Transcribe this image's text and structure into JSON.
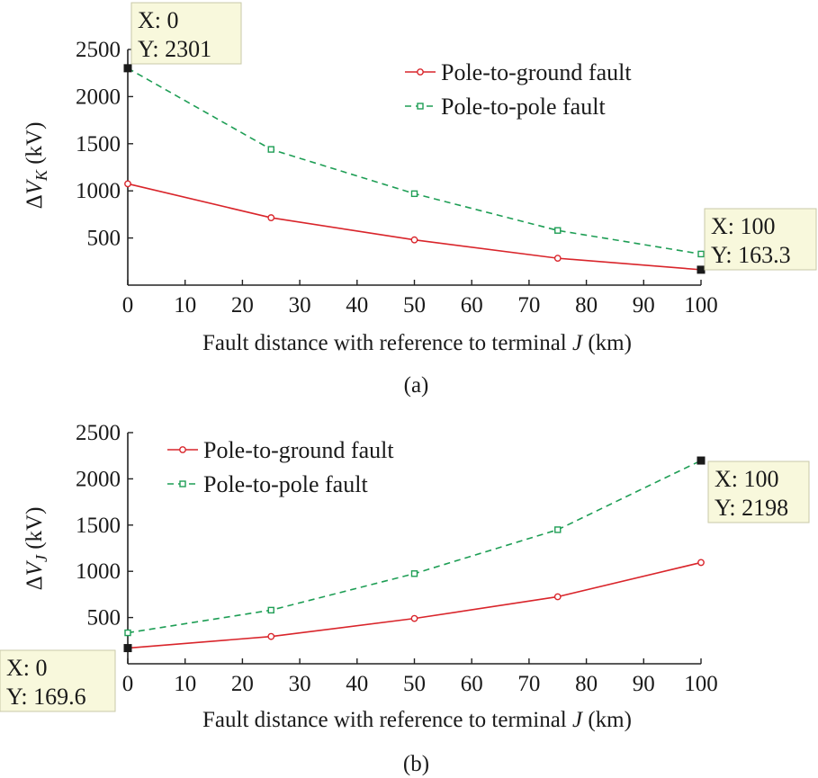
{
  "chart_data": [
    {
      "type": "line",
      "caption": "(a)",
      "xlabel": "Fault distance with reference to terminal J (km)",
      "ylabel": "ΔV_K (kV)",
      "xlim": [
        0,
        100
      ],
      "ylim": [
        0,
        2500
      ],
      "xticks": [
        0,
        10,
        20,
        30,
        40,
        50,
        60,
        70,
        80,
        90,
        100
      ],
      "yticks": [
        500,
        1000,
        1500,
        2000,
        2500
      ],
      "grid": false,
      "legend_position": "top-right",
      "series": [
        {
          "name": "Pole-to-ground fault",
          "color": "#d9252b",
          "style": "solid",
          "marker": "circle",
          "x": [
            0,
            25,
            50,
            75,
            100
          ],
          "y": [
            1075,
            715,
            480,
            285,
            163.3
          ]
        },
        {
          "name": "Pole-to-pole fault",
          "color": "#1e9e55",
          "style": "dashed",
          "marker": "square",
          "x": [
            0,
            25,
            50,
            75,
            100
          ],
          "y": [
            2301,
            1440,
            970,
            580,
            330
          ]
        }
      ],
      "datatips": [
        {
          "x": 0,
          "y": 2301,
          "line1": "X: 0",
          "line2": "Y: 2301"
        },
        {
          "x": 100,
          "y": 163.3,
          "line1": "X: 100",
          "line2": "Y: 163.3"
        }
      ]
    },
    {
      "type": "line",
      "caption": "(b)",
      "xlabel": "Fault distance with reference to terminal J (km)",
      "ylabel": "ΔV_J (kV)",
      "xlim": [
        0,
        100
      ],
      "ylim": [
        0,
        2500
      ],
      "xticks": [
        0,
        10,
        20,
        30,
        40,
        50,
        60,
        70,
        80,
        90,
        100
      ],
      "yticks": [
        500,
        1000,
        1500,
        2000,
        2500
      ],
      "grid": false,
      "legend_position": "top-left",
      "series": [
        {
          "name": "Pole-to-ground fault",
          "color": "#d9252b",
          "style": "solid",
          "marker": "circle",
          "x": [
            0,
            25,
            50,
            75,
            100
          ],
          "y": [
            169.6,
            295,
            490,
            725,
            1095
          ]
        },
        {
          "name": "Pole-to-pole fault",
          "color": "#1e9e55",
          "style": "dashed",
          "marker": "square",
          "x": [
            0,
            25,
            50,
            75,
            100
          ],
          "y": [
            335,
            580,
            975,
            1450,
            2198
          ]
        }
      ],
      "datatips": [
        {
          "x": 100,
          "y": 2198,
          "line1": "X: 100",
          "line2": "Y: 2198"
        },
        {
          "x": 0,
          "y": 169.6,
          "line1": "X: 0",
          "line2": "Y: 169.6"
        }
      ]
    }
  ]
}
